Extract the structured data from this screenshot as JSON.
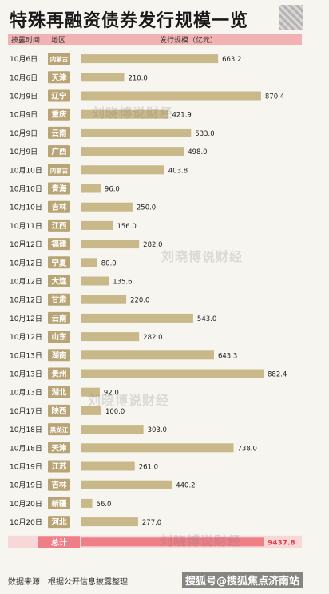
{
  "title": "特殊再融资债券发行规模一览",
  "header": {
    "date_col": "披露时间",
    "region_col": "地区",
    "value_col": "发行规模（亿元）"
  },
  "watermark": "刘晓博说财经",
  "footer": {
    "source": "数据来源：根据公开信息披露整理",
    "brand": "搜狐号@搜狐焦点济南站"
  },
  "colors": {
    "bar": "#c9b98a",
    "total_bar": "#ef7f87",
    "region_box": "#b8a475",
    "total_value": "#e0404a",
    "header_band": "#f2b2b4"
  },
  "chart_data": {
    "type": "bar",
    "orientation": "horizontal",
    "title": "特殊再融资债券发行规模一览",
    "xlabel": "发行规模（亿元）",
    "rows": [
      {
        "date": "10月6日",
        "region": "内蒙古",
        "value": 663.2
      },
      {
        "date": "10月6日",
        "region": "天津",
        "value": 210.0
      },
      {
        "date": "10月9日",
        "region": "辽宁",
        "value": 870.4
      },
      {
        "date": "10月9日",
        "region": "重庆",
        "value": 421.9
      },
      {
        "date": "10月9日",
        "region": "云南",
        "value": 533.0
      },
      {
        "date": "10月9日",
        "region": "广西",
        "value": 498.0
      },
      {
        "date": "10月10日",
        "region": "内蒙古",
        "value": 403.8
      },
      {
        "date": "10月10日",
        "region": "青海",
        "value": 96.0
      },
      {
        "date": "10月10日",
        "region": "吉林",
        "value": 250.0
      },
      {
        "date": "10月11日",
        "region": "江西",
        "value": 156.0
      },
      {
        "date": "10月12日",
        "region": "福建",
        "value": 282.0
      },
      {
        "date": "10月12日",
        "region": "宁夏",
        "value": 80.0
      },
      {
        "date": "10月12日",
        "region": "大连",
        "value": 135.6
      },
      {
        "date": "10月12日",
        "region": "甘肃",
        "value": 220.0
      },
      {
        "date": "10月12日",
        "region": "云南",
        "value": 543.0
      },
      {
        "date": "10月12日",
        "region": "山东",
        "value": 282.0
      },
      {
        "date": "10月13日",
        "region": "湖南",
        "value": 643.3
      },
      {
        "date": "10月13日",
        "region": "贵州",
        "value": 882.4
      },
      {
        "date": "10月13日",
        "region": "湖北",
        "value": 92.0
      },
      {
        "date": "10月17日",
        "region": "陕西",
        "value": 100.0
      },
      {
        "date": "10月18日",
        "region": "黑龙江",
        "value": 303.0
      },
      {
        "date": "10月18日",
        "region": "天津",
        "value": 738.0
      },
      {
        "date": "10月19日",
        "region": "江苏",
        "value": 261.0
      },
      {
        "date": "10月19日",
        "region": "吉林",
        "value": 440.2
      },
      {
        "date": "10月20日",
        "region": "新疆",
        "value": 56.0
      },
      {
        "date": "10月20日",
        "region": "河北",
        "value": 277.0
      }
    ],
    "total": {
      "label": "总计",
      "value": 9437.8
    }
  }
}
